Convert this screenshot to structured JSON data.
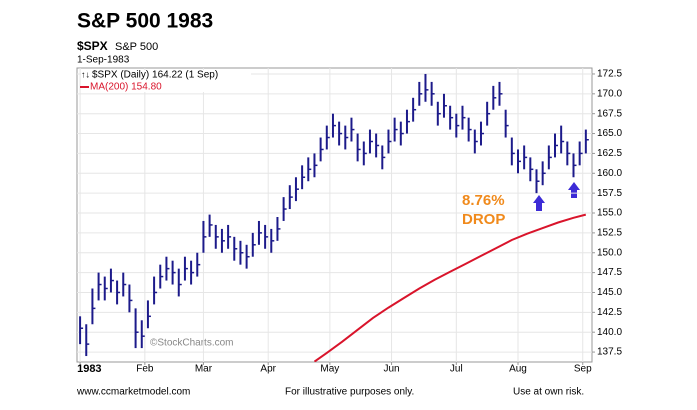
{
  "chart_data": {
    "type": "ohlc",
    "title": "S&P 500 1983",
    "symbol": "$SPX",
    "symbol_name": "S&P 500",
    "date": "1-Sep-1983",
    "legend": [
      "$SPX (Daily) 164.22 (1 Sep)",
      "MA(200) 154.80"
    ],
    "watermark": "©StockCharts.com",
    "annotations": [
      "8.76%",
      "DROP"
    ],
    "footer": [
      "www.ccmarketmodel.com",
      "For illustrative purposes only.",
      "Use at own risk."
    ],
    "xlim": [
      -1,
      166
    ],
    "xticks": [
      {
        "value": 0,
        "label": "1983"
      },
      {
        "value": 21,
        "label": "Feb"
      },
      {
        "value": 40,
        "label": "Mar"
      },
      {
        "value": 61,
        "label": "Apr"
      },
      {
        "value": 81,
        "label": "May"
      },
      {
        "value": 101,
        "label": "Jun"
      },
      {
        "value": 122,
        "label": "Jul"
      },
      {
        "value": 142,
        "label": "Aug"
      },
      {
        "value": 163,
        "label": "Sep"
      }
    ],
    "ylim": [
      136.25,
      173.25
    ],
    "yticks": [
      137.5,
      140.0,
      142.5,
      145.0,
      147.5,
      150.0,
      152.5,
      155.0,
      157.5,
      160.0,
      162.5,
      165.0,
      167.5,
      170.0,
      172.5
    ],
    "grid": true,
    "price": {
      "color": "#1c1a8a",
      "x": [
        0,
        2,
        4,
        6,
        8,
        10,
        12,
        14,
        16,
        18,
        20,
        22,
        24,
        26,
        28,
        30,
        32,
        34,
        36,
        38,
        40,
        42,
        44,
        46,
        48,
        50,
        52,
        54,
        56,
        58,
        60,
        62,
        64,
        66,
        68,
        70,
        72,
        74,
        76,
        78,
        80,
        82,
        84,
        86,
        88,
        90,
        92,
        94,
        96,
        98,
        100,
        102,
        104,
        106,
        108,
        110,
        112,
        114,
        116,
        118,
        120,
        122,
        124,
        126,
        128,
        130,
        132,
        134,
        136,
        138,
        140,
        142,
        144,
        146,
        148,
        150,
        152,
        154,
        156,
        158,
        160,
        162,
        164
      ],
      "high": [
        142,
        141,
        145.5,
        147.5,
        147,
        148,
        146.5,
        147.5,
        146,
        143,
        141.5,
        144,
        147,
        148.5,
        149.5,
        149,
        148,
        149.5,
        149,
        150,
        154,
        154.8,
        153.5,
        153,
        153.5,
        152,
        151.5,
        151,
        152.5,
        154,
        153.5,
        153,
        154.5,
        157,
        158.5,
        159.5,
        161,
        162,
        162.5,
        164.5,
        166,
        167.5,
        166.5,
        166,
        167,
        165,
        164,
        165.5,
        165,
        163.5,
        165.5,
        167,
        166.5,
        168,
        169.5,
        171.5,
        172.5,
        171.5,
        169,
        170,
        168.5,
        167.5,
        168.5,
        167,
        165.5,
        166.5,
        169,
        171,
        171.5,
        168,
        164.5,
        163,
        163.5,
        162,
        160.5,
        161.5,
        163.5,
        165,
        166,
        164,
        162.5,
        164,
        165.5
      ],
      "low": [
        138.5,
        137,
        141,
        144,
        144,
        145,
        143.5,
        144.5,
        142.5,
        138,
        138,
        140.5,
        143.5,
        145.5,
        146.5,
        146,
        144.5,
        146.5,
        146,
        147,
        150,
        152,
        150.5,
        150,
        150.5,
        149,
        148.5,
        148,
        149.5,
        151,
        150.5,
        150,
        151.5,
        154,
        155.5,
        156.5,
        158,
        159,
        159.5,
        161.5,
        163,
        164.5,
        163.5,
        163,
        164,
        161.5,
        161,
        162.5,
        162,
        160.5,
        162.5,
        164,
        163.5,
        165,
        166.5,
        168.5,
        169,
        168.5,
        166,
        167,
        165.5,
        164.5,
        165.5,
        164,
        162.5,
        163.5,
        166,
        168,
        168.5,
        164.5,
        161,
        160,
        160.5,
        159,
        157.5,
        158.5,
        160.5,
        162,
        162.5,
        161,
        159.5,
        161,
        162.5
      ],
      "close": [
        140.5,
        138.5,
        143,
        146,
        145.5,
        146.5,
        145,
        146,
        144,
        140,
        139.5,
        142,
        145,
        147,
        148,
        147.5,
        146,
        148,
        147.5,
        148.5,
        152,
        153.5,
        152,
        151.5,
        152,
        150.5,
        150,
        149.5,
        151,
        152.5,
        152,
        151.5,
        153,
        155.5,
        157,
        158,
        159.5,
        160.5,
        161,
        163,
        164.5,
        166,
        165,
        164.5,
        165.5,
        163,
        162.5,
        164,
        163.5,
        162,
        164,
        165.5,
        165,
        166.5,
        168,
        170,
        170.5,
        170,
        167.5,
        168.5,
        167,
        166,
        167,
        165.5,
        164,
        165,
        167.5,
        169.5,
        170,
        166,
        162.5,
        161.5,
        162,
        160.5,
        159,
        160,
        162,
        163.5,
        164,
        162.5,
        161,
        162.5,
        164.22
      ]
    },
    "ma": {
      "color": "#d9142b",
      "x": [
        76,
        80,
        85,
        90,
        95,
        100,
        105,
        110,
        115,
        120,
        125,
        130,
        135,
        140,
        145,
        150,
        155,
        160,
        164
      ],
      "values": [
        136.3,
        137.4,
        138.8,
        140.3,
        141.8,
        143.1,
        144.3,
        145.5,
        146.6,
        147.6,
        148.6,
        149.6,
        150.6,
        151.6,
        152.4,
        153.1,
        153.8,
        154.4,
        154.8
      ]
    }
  }
}
